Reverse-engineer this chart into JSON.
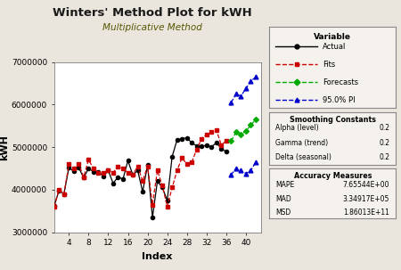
{
  "title": "Winters' Method Plot for kWH",
  "subtitle": "Multiplicative Method",
  "xlabel": "Index",
  "ylabel": "kWH",
  "bg_color": "#eae6de",
  "plot_bg_color": "#ffffff",
  "ylim": [
    3000000,
    7000000
  ],
  "xlim": [
    1,
    43
  ],
  "xticks": [
    4,
    8,
    12,
    16,
    20,
    24,
    28,
    32,
    36,
    40
  ],
  "yticks": [
    3000000,
    4000000,
    5000000,
    6000000,
    7000000
  ],
  "actual_x": [
    1,
    2,
    3,
    4,
    5,
    6,
    7,
    8,
    9,
    10,
    11,
    12,
    13,
    14,
    15,
    16,
    17,
    18,
    19,
    20,
    21,
    22,
    23,
    24,
    25,
    26,
    27,
    28,
    29,
    30,
    31,
    32,
    33,
    34,
    35,
    36
  ],
  "actual_y": [
    3620000,
    3980000,
    3900000,
    4520000,
    4430000,
    4520000,
    4280000,
    4500000,
    4420000,
    4420000,
    4320000,
    4450000,
    4150000,
    4300000,
    4250000,
    4680000,
    4350000,
    4450000,
    3950000,
    4580000,
    3350000,
    4200000,
    4050000,
    3750000,
    4780000,
    5170000,
    5200000,
    5220000,
    5100000,
    5030000,
    5020000,
    5040000,
    5010000,
    5100000,
    4970000,
    4890000
  ],
  "fits_x": [
    1,
    2,
    3,
    4,
    5,
    6,
    7,
    8,
    9,
    10,
    11,
    12,
    13,
    14,
    15,
    16,
    17,
    18,
    19,
    20,
    21,
    22,
    23,
    24,
    25,
    26,
    27,
    28,
    29,
    30,
    31,
    32,
    33,
    34,
    35,
    36
  ],
  "fits_y": [
    3600000,
    4000000,
    3900000,
    4600000,
    4500000,
    4600000,
    4300000,
    4700000,
    4500000,
    4400000,
    4400000,
    4450000,
    4400000,
    4550000,
    4500000,
    4400000,
    4350000,
    4550000,
    4200000,
    4550000,
    3650000,
    4450000,
    4100000,
    3600000,
    4050000,
    4450000,
    4750000,
    4600000,
    4650000,
    4950000,
    5200000,
    5300000,
    5350000,
    5400000,
    5050000,
    5150000
  ],
  "forecast_x": [
    37,
    38,
    39,
    40,
    41,
    42
  ],
  "forecast_y": [
    5150000,
    5350000,
    5300000,
    5380000,
    5520000,
    5650000
  ],
  "pi_upper_x": [
    37,
    38,
    39,
    40,
    41,
    42
  ],
  "pi_upper_y": [
    6050000,
    6250000,
    6200000,
    6380000,
    6550000,
    6650000
  ],
  "pi_lower_x": [
    37,
    38,
    39,
    40,
    41,
    42
  ],
  "pi_lower_y": [
    4350000,
    4500000,
    4450000,
    4380000,
    4450000,
    4650000
  ],
  "actual_color": "#000000",
  "fits_color": "#cc0000",
  "forecast_color": "#00aa00",
  "pi_color": "#0000cc",
  "smoothing_alpha": "0.2",
  "smoothing_gamma": "0.2",
  "smoothing_delta": "0.2",
  "accuracy_mape": "7.65544E+00",
  "accuracy_mad": "3.34917E+05",
  "accuracy_msd": "1.86013E+11"
}
